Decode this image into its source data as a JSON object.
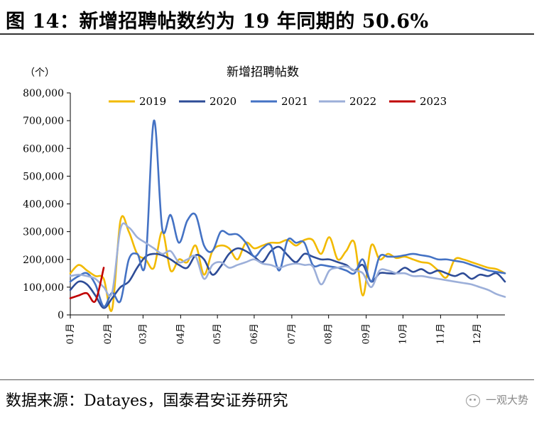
{
  "figure": {
    "title": "图 14：新增招聘帖数约为 19 年同期的 50.6%",
    "source": "数据来源：Datayes，国泰君安证券研究",
    "watermark": "一观大势"
  },
  "chart_data": {
    "type": "line",
    "title": "新增招聘帖数",
    "unit_label": "（个）",
    "ylim": [
      0,
      800000
    ],
    "yticks": [
      0,
      100000,
      200000,
      300000,
      400000,
      500000,
      600000,
      700000,
      800000
    ],
    "ytick_labels": [
      "0",
      "100,000",
      "200,000",
      "300,000",
      "400,000",
      "500,000",
      "600,000",
      "700,000",
      "800,000"
    ],
    "xlim": [
      0,
      52
    ],
    "x_unit": "week",
    "xticks": [
      0,
      4.5,
      8.7,
      13.2,
      17.6,
      22,
      26.5,
      30.9,
      35.4,
      39.8,
      44.3,
      48.7
    ],
    "xtick_labels": [
      "01月",
      "02月",
      "03月",
      "04月",
      "05月",
      "06月",
      "07月",
      "08月",
      "09月",
      "10月",
      "11月",
      "12月"
    ],
    "legend_position": "top",
    "series": [
      {
        "name": "2019",
        "color": "#F2BA00",
        "x": [
          0,
          1,
          2,
          3,
          4,
          5,
          6,
          7,
          8,
          9,
          10,
          11,
          12,
          13,
          14,
          15,
          16,
          17,
          18,
          19,
          20,
          21,
          22,
          23,
          24,
          25,
          26,
          27,
          28,
          29,
          30,
          31,
          32,
          33,
          34,
          35,
          36,
          37,
          38,
          39,
          40,
          41,
          42,
          43,
          44,
          45,
          46,
          47,
          48,
          49,
          50,
          51,
          52
        ],
        "y": [
          150000,
          180000,
          160000,
          140000,
          130000,
          20000,
          340000,
          300000,
          220000,
          200000,
          170000,
          300000,
          160000,
          200000,
          190000,
          250000,
          145000,
          230000,
          250000,
          240000,
          200000,
          260000,
          240000,
          250000,
          260000,
          260000,
          270000,
          250000,
          270000,
          270000,
          220000,
          280000,
          200000,
          230000,
          260000,
          70000,
          250000,
          200000,
          220000,
          205000,
          210000,
          200000,
          190000,
          185000,
          160000,
          135000,
          200000,
          200000,
          190000,
          180000,
          170000,
          165000,
          150000
        ]
      },
      {
        "name": "2020",
        "color": "#2E4C97",
        "x": [
          0,
          1,
          2,
          3,
          4,
          5,
          6,
          7,
          8,
          9,
          10,
          11,
          12,
          13,
          14,
          15,
          16,
          17,
          18,
          19,
          20,
          21,
          22,
          23,
          24,
          25,
          26,
          27,
          28,
          29,
          30,
          31,
          32,
          33,
          34,
          35,
          36,
          37,
          38,
          39,
          40,
          41,
          42,
          43,
          44,
          45,
          46,
          47,
          48,
          49,
          50,
          51,
          52
        ],
        "y": [
          90000,
          120000,
          110000,
          70000,
          25000,
          60000,
          100000,
          120000,
          170000,
          210000,
          220000,
          215000,
          200000,
          180000,
          170000,
          215000,
          200000,
          145000,
          175000,
          220000,
          240000,
          230000,
          210000,
          190000,
          230000,
          245000,
          215000,
          190000,
          220000,
          210000,
          200000,
          200000,
          190000,
          180000,
          160000,
          180000,
          120000,
          150000,
          150000,
          150000,
          170000,
          155000,
          165000,
          150000,
          160000,
          150000,
          140000,
          150000,
          130000,
          145000,
          140000,
          150000,
          120000
        ]
      },
      {
        "name": "2021",
        "color": "#4472C4",
        "x": [
          0,
          1,
          2,
          3,
          4,
          5,
          6,
          7,
          8,
          9,
          10,
          11,
          12,
          13,
          14,
          15,
          16,
          17,
          18,
          19,
          20,
          21,
          22,
          23,
          24,
          25,
          26,
          27,
          28,
          29,
          30,
          31,
          32,
          33,
          34,
          35,
          36,
          37,
          38,
          39,
          40,
          41,
          42,
          43,
          44,
          45,
          46,
          47,
          48,
          49,
          50,
          51,
          52
        ],
        "y": [
          120000,
          140000,
          150000,
          110000,
          30000,
          80000,
          50000,
          200000,
          220000,
          190000,
          700000,
          310000,
          360000,
          260000,
          340000,
          360000,
          250000,
          230000,
          300000,
          290000,
          290000,
          260000,
          210000,
          240000,
          250000,
          160000,
          270000,
          260000,
          260000,
          180000,
          180000,
          175000,
          170000,
          160000,
          150000,
          200000,
          120000,
          210000,
          210000,
          210000,
          215000,
          220000,
          215000,
          210000,
          200000,
          200000,
          195000,
          190000,
          180000,
          170000,
          160000,
          155000,
          150000
        ]
      },
      {
        "name": "2022",
        "color": "#9CAFD9",
        "x": [
          0,
          1,
          2,
          3,
          4,
          5,
          6,
          7,
          8,
          9,
          10,
          11,
          12,
          13,
          14,
          15,
          16,
          17,
          18,
          19,
          20,
          21,
          22,
          23,
          24,
          25,
          26,
          27,
          28,
          29,
          30,
          31,
          32,
          33,
          34,
          35,
          36,
          37,
          38,
          39,
          40,
          41,
          42,
          43,
          44,
          45,
          46,
          47,
          48,
          49,
          50,
          51,
          52
        ],
        "y": [
          140000,
          145000,
          140000,
          130000,
          100000,
          80000,
          310000,
          315000,
          280000,
          260000,
          240000,
          220000,
          230000,
          190000,
          200000,
          210000,
          130000,
          180000,
          190000,
          170000,
          180000,
          190000,
          200000,
          185000,
          180000,
          170000,
          180000,
          185000,
          180000,
          175000,
          110000,
          160000,
          170000,
          175000,
          160000,
          150000,
          100000,
          160000,
          160000,
          150000,
          150000,
          140000,
          140000,
          135000,
          130000,
          125000,
          120000,
          115000,
          110000,
          100000,
          90000,
          75000,
          65000
        ]
      },
      {
        "name": "2023",
        "color": "#C00000",
        "x": [
          0,
          1,
          2,
          3,
          4
        ],
        "y": [
          60000,
          70000,
          78000,
          50000,
          170000
        ]
      }
    ]
  }
}
